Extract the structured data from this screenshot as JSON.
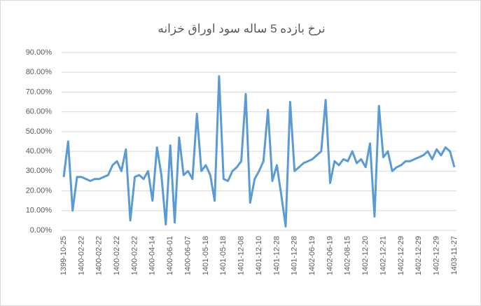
{
  "chart_data": {
    "type": "line",
    "title": "نرخ بازده 5 ساله سود اوراق خزانه",
    "categories": [
      "1399-10-25",
      null,
      null,
      null,
      "1400-02-22",
      null,
      null,
      null,
      "1400-02-22",
      null,
      null,
      null,
      "1400-02-22",
      null,
      null,
      null,
      "1400-02-22",
      null,
      null,
      null,
      "1400-04-14",
      null,
      null,
      null,
      "1400-06-01",
      null,
      null,
      null,
      "1400-06-07",
      null,
      null,
      null,
      "1401-05-18",
      null,
      null,
      null,
      "1401-05-18",
      null,
      null,
      null,
      "1401-12-08",
      null,
      null,
      null,
      "1401-12-10",
      null,
      null,
      null,
      "1401-12-28",
      null,
      null,
      null,
      "1401-12-28",
      null,
      null,
      null,
      "1402-06-19",
      null,
      null,
      null,
      "1402-06-19",
      null,
      null,
      null,
      "1402-08-15",
      null,
      null,
      null,
      "1402-12-20",
      null,
      null,
      null,
      "1402-12-21",
      null,
      null,
      null,
      "1402-12-29",
      null,
      null,
      null,
      "1402-12-29",
      null,
      null,
      null,
      "1402-12-29",
      null,
      null,
      null,
      "1403-11-27"
    ],
    "values": [
      27,
      45,
      10,
      27,
      27,
      26,
      25,
      26,
      26,
      27,
      28,
      33,
      35,
      30,
      41,
      5,
      27,
      28,
      26,
      30,
      15,
      42,
      28,
      3,
      43,
      4,
      47,
      28,
      30,
      26,
      59,
      30,
      33,
      28,
      15,
      78,
      26,
      25,
      30,
      32,
      35,
      69,
      14,
      26,
      30,
      35,
      61,
      25,
      33,
      18,
      2,
      65,
      30,
      32,
      34,
      35,
      36,
      38,
      40,
      66,
      24,
      35,
      33,
      36,
      35,
      40,
      34,
      36,
      32,
      44,
      7,
      63,
      37,
      40,
      30,
      32,
      33,
      35,
      35,
      36,
      37,
      38,
      40,
      36,
      41,
      38,
      42,
      40,
      32
    ],
    "color": "#5b9bd5",
    "ylim": [
      0,
      90
    ],
    "yticks": [
      {
        "value": 0,
        "label": "0.00%"
      },
      {
        "value": 10,
        "label": "10.00%"
      },
      {
        "value": 20,
        "label": "20.00%"
      },
      {
        "value": 30,
        "label": "30.00%"
      },
      {
        "value": 40,
        "label": "40.00%"
      },
      {
        "value": 50,
        "label": "50.00%"
      },
      {
        "value": 60,
        "label": "60.00%"
      },
      {
        "value": 70,
        "label": "70.00%"
      },
      {
        "value": 80,
        "label": "80.00%"
      },
      {
        "value": 90,
        "label": "90.00%"
      }
    ],
    "grid": true
  }
}
